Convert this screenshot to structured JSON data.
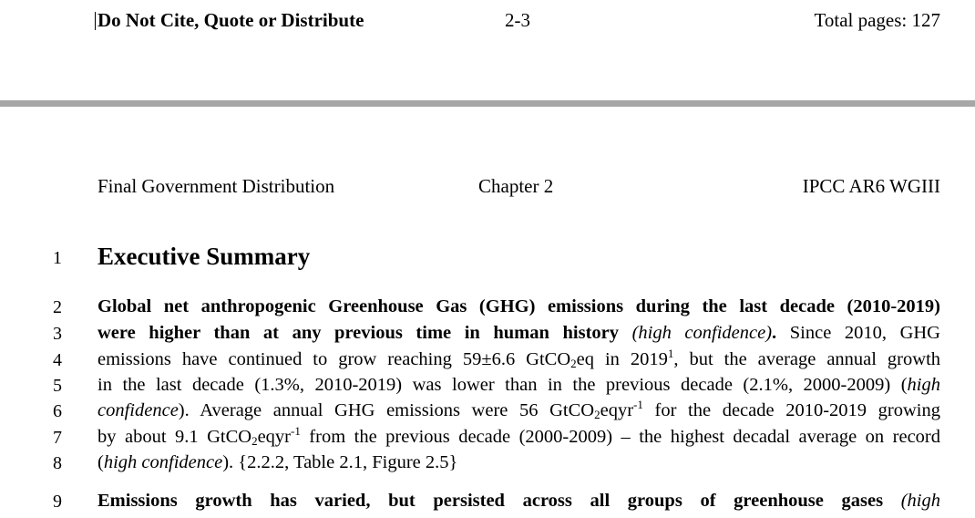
{
  "footer": {
    "notice": "Do Not Cite, Quote or Distribute",
    "page_number": "2-3",
    "total_pages": "Total pages: 127"
  },
  "header": {
    "distribution": "Final Government Distribution",
    "chapter": "Chapter 2",
    "report": "IPCC AR6 WGIII"
  },
  "section": {
    "line_number": "1",
    "title": "Executive Summary"
  },
  "line_numbers": [
    "2",
    "3",
    "4",
    "5",
    "6",
    "7",
    "8",
    "9"
  ],
  "paragraph1": {
    "l2": "Global net anthropogenic Greenhouse Gas (GHG) emissions during the last decade (2010-2019)",
    "l3_bold": "were higher than at any previous time in human history",
    "l3_italic": "(high confidence)",
    "l3_boldend": ".",
    "l3_rest": "Since 2010, GHG",
    "l4_a": "emissions have continued to grow reaching 59±6.6 GtCO",
    "l4_sub": "2",
    "l4_b": "eq in 2019",
    "l4_sup": "1",
    "l4_c": ", but the average annual growth",
    "l5_a": "in the last decade (1.3%, 2010-2019) was lower than in the previous decade (2.1%, 2000-2009) (",
    "l5_italic": "high",
    "l6_italic": "confidence",
    "l6_a": "). Average annual GHG emissions were 56 GtCO",
    "l6_sub": "2",
    "l6_b": "eqyr",
    "l6_sup": "-1",
    "l6_c": " for the decade 2010-2019 growing",
    "l7_a": "by about 9.1 GtCO",
    "l7_sub": "2",
    "l7_b": "eqyr",
    "l7_sup": "-1",
    "l7_c": " from the previous decade (2000-2009) – the highest decadal average on record",
    "l8_a": "(",
    "l8_italic": "high confidence",
    "l8_b": "). {2.2.2, Table 2.1, Figure 2.5}"
  },
  "paragraph2": {
    "l9_bold": "Emissions growth has varied, but persisted across all groups of greenhouse gases",
    "l9_italic": "(high"
  }
}
